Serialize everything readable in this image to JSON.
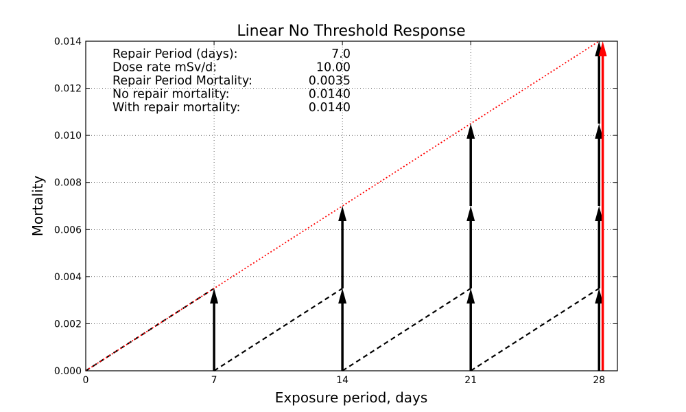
{
  "chart_data": {
    "type": "line",
    "title": "Linear No Threshold Response",
    "xlabel": "Exposure period, days",
    "ylabel": "Mortality",
    "xlim": [
      0,
      29
    ],
    "ylim": [
      0,
      0.014
    ],
    "x_ticks": [
      {
        "value": 0,
        "label": "0"
      },
      {
        "value": 7,
        "label": "7"
      },
      {
        "value": 14,
        "label": "14"
      },
      {
        "value": 21,
        "label": "21"
      },
      {
        "value": 28,
        "label": "28"
      }
    ],
    "y_ticks": [
      {
        "value": 0,
        "label": "0.000"
      },
      {
        "value": 0.002,
        "label": "0.002"
      },
      {
        "value": 0.004,
        "label": "0.004"
      },
      {
        "value": 0.006,
        "label": "0.006"
      },
      {
        "value": 0.008,
        "label": "0.008"
      },
      {
        "value": 0.01,
        "label": "0.010"
      },
      {
        "value": 0.012,
        "label": "0.012"
      },
      {
        "value": 0.014,
        "label": "0.014"
      }
    ],
    "grid": true,
    "info": [
      {
        "label": "Repair Period (days):",
        "value": "7.0"
      },
      {
        "label": "Dose rate mSv/d:",
        "value": "10.00"
      },
      {
        "label": "Repair Period Mortality:",
        "value": "0.0035"
      },
      {
        "label": "No repair mortality:",
        "value": "0.0140"
      },
      {
        "label": "With repair mortality:",
        "value": "0.0140"
      }
    ],
    "no_repair_line": {
      "x": [
        0,
        28
      ],
      "y": [
        0,
        0.014
      ],
      "color": "#ff0000",
      "style": "dotted"
    },
    "repair_period_segments": [
      {
        "x": [
          0,
          7
        ],
        "y": [
          0,
          0.0035
        ]
      },
      {
        "x": [
          7,
          14
        ],
        "y": [
          0,
          0.0035
        ]
      },
      {
        "x": [
          14,
          21
        ],
        "y": [
          0,
          0.0035
        ]
      },
      {
        "x": [
          21,
          28
        ],
        "y": [
          0,
          0.0035
        ]
      }
    ],
    "arrows": [
      {
        "x": 7,
        "y_from": 0,
        "y_to": 0.0035,
        "color": "#000000"
      },
      {
        "x": 14,
        "y_from": 0,
        "y_to": 0.0035,
        "color": "#000000"
      },
      {
        "x": 14,
        "y_from": 0.0035,
        "y_to": 0.007,
        "color": "#000000"
      },
      {
        "x": 21,
        "y_from": 0,
        "y_to": 0.0035,
        "color": "#000000"
      },
      {
        "x": 21,
        "y_from": 0.0035,
        "y_to": 0.007,
        "color": "#000000"
      },
      {
        "x": 21,
        "y_from": 0.007,
        "y_to": 0.0105,
        "color": "#000000"
      },
      {
        "x": 28,
        "y_from": 0,
        "y_to": 0.0035,
        "color": "#000000"
      },
      {
        "x": 28,
        "y_from": 0.0035,
        "y_to": 0.007,
        "color": "#000000"
      },
      {
        "x": 28,
        "y_from": 0.007,
        "y_to": 0.0105,
        "color": "#000000"
      },
      {
        "x": 28,
        "y_from": 0.0105,
        "y_to": 0.014,
        "color": "#000000"
      },
      {
        "x": 28.2,
        "y_from": 0,
        "y_to": 0.014,
        "color": "#ff0000"
      }
    ]
  }
}
